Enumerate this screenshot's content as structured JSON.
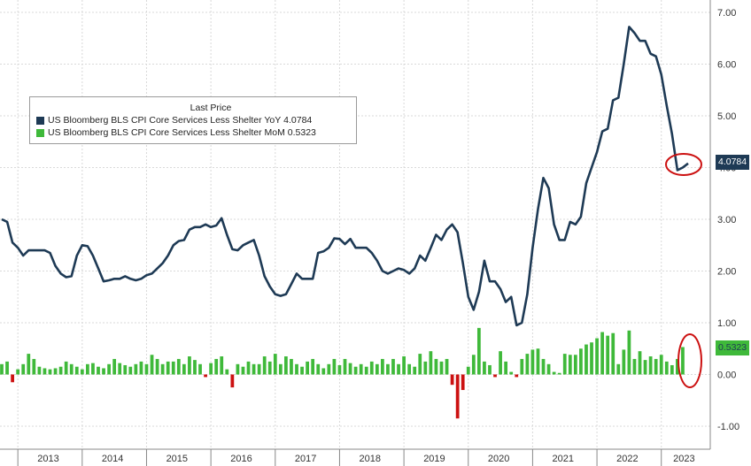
{
  "legend": {
    "header": "Last Price",
    "items": [
      {
        "label": "US Bloomberg BLS CPI Core Services Less Shelter YoY",
        "value": "4.0784",
        "color": "#1e3a55"
      },
      {
        "label": "US Bloomberg BLS CPI Core Services Less Shelter MoM",
        "value": "0.5323",
        "color": "#3fb93a"
      }
    ]
  },
  "tags": {
    "yoy": "4.0784",
    "mom": "0.5323"
  },
  "chart_data": {
    "type": "line",
    "x_start": "2012-10",
    "ylim": [
      -1.2,
      7.2
    ],
    "y_ticks": [
      "-1.00",
      "0.00",
      "1.00",
      "2.00",
      "3.00",
      "4.00",
      "5.00",
      "6.00",
      "7.00"
    ],
    "x_ticks": [
      "2013",
      "2014",
      "2015",
      "2016",
      "2017",
      "2018",
      "2019",
      "2020",
      "2021",
      "2022",
      "2023"
    ],
    "grid": true,
    "legend_position": "top-left",
    "colors": {
      "yoy": "#1e3a55",
      "mom_pos": "#3fb93a",
      "mom_neg": "#cc1111",
      "highlight": "#cc1111"
    },
    "series": [
      {
        "name": "US Bloomberg BLS CPI Core Services Less Shelter YoY",
        "kind": "line",
        "values": [
          3.0,
          2.95,
          2.55,
          2.45,
          2.3,
          2.4,
          2.4,
          2.4,
          2.4,
          2.35,
          2.1,
          1.95,
          1.88,
          1.9,
          2.3,
          2.5,
          2.48,
          2.3,
          2.05,
          1.8,
          1.82,
          1.85,
          1.85,
          1.9,
          1.85,
          1.82,
          1.85,
          1.92,
          1.95,
          2.05,
          2.15,
          2.3,
          2.5,
          2.58,
          2.6,
          2.8,
          2.85,
          2.85,
          2.9,
          2.85,
          2.88,
          3.02,
          2.7,
          2.42,
          2.4,
          2.5,
          2.55,
          2.6,
          2.3,
          1.9,
          1.7,
          1.55,
          1.52,
          1.55,
          1.75,
          1.95,
          1.85,
          1.85,
          1.85,
          2.35,
          2.38,
          2.45,
          2.63,
          2.62,
          2.52,
          2.62,
          2.45,
          2.45,
          2.45,
          2.35,
          2.2,
          2.0,
          1.95,
          2.0,
          2.05,
          2.02,
          1.95,
          2.05,
          2.3,
          2.2,
          2.45,
          2.7,
          2.6,
          2.8,
          2.9,
          2.75,
          2.15,
          1.5,
          1.25,
          1.6,
          2.2,
          1.8,
          1.8,
          1.65,
          1.4,
          1.5,
          0.95,
          1.0,
          1.55,
          2.45,
          3.2,
          3.8,
          3.6,
          2.9,
          2.6,
          2.6,
          2.95,
          2.9,
          3.05,
          3.7,
          4.0,
          4.3,
          4.7,
          4.75,
          5.3,
          5.35,
          6.0,
          6.72,
          6.6,
          6.45,
          6.45,
          6.2,
          6.15,
          5.8,
          5.2,
          4.65,
          3.95,
          4.0,
          4.08
        ]
      },
      {
        "name": "US Bloomberg BLS CPI Core Services Less Shelter MoM",
        "kind": "bar",
        "values": [
          0.2,
          0.25,
          -0.15,
          0.1,
          0.2,
          0.4,
          0.3,
          0.15,
          0.12,
          0.1,
          0.12,
          0.15,
          0.25,
          0.2,
          0.15,
          0.1,
          0.2,
          0.22,
          0.15,
          0.12,
          0.2,
          0.3,
          0.22,
          0.18,
          0.15,
          0.2,
          0.25,
          0.2,
          0.38,
          0.3,
          0.2,
          0.25,
          0.25,
          0.3,
          0.2,
          0.35,
          0.28,
          0.2,
          -0.05,
          0.22,
          0.3,
          0.35,
          0.1,
          -0.25,
          0.2,
          0.15,
          0.25,
          0.2,
          0.2,
          0.35,
          0.25,
          0.4,
          0.2,
          0.35,
          0.3,
          0.2,
          0.15,
          0.25,
          0.3,
          0.2,
          0.12,
          0.2,
          0.3,
          0.18,
          0.3,
          0.22,
          0.15,
          0.2,
          0.15,
          0.25,
          0.2,
          0.3,
          0.2,
          0.3,
          0.2,
          0.35,
          0.2,
          0.15,
          0.4,
          0.25,
          0.45,
          0.3,
          0.25,
          0.3,
          -0.2,
          -0.85,
          -0.3,
          0.15,
          0.38,
          0.9,
          0.25,
          0.18,
          -0.05,
          0.45,
          0.25,
          0.05,
          -0.05,
          0.3,
          0.4,
          0.48,
          0.5,
          0.3,
          0.2,
          0.05,
          0.03,
          0.4,
          0.38,
          0.38,
          0.5,
          0.58,
          0.62,
          0.7,
          0.82,
          0.75,
          0.8,
          0.2,
          0.48,
          0.85,
          0.3,
          0.45,
          0.28,
          0.35,
          0.3,
          0.38,
          0.25,
          0.18,
          0.3,
          0.53
        ]
      }
    ]
  }
}
